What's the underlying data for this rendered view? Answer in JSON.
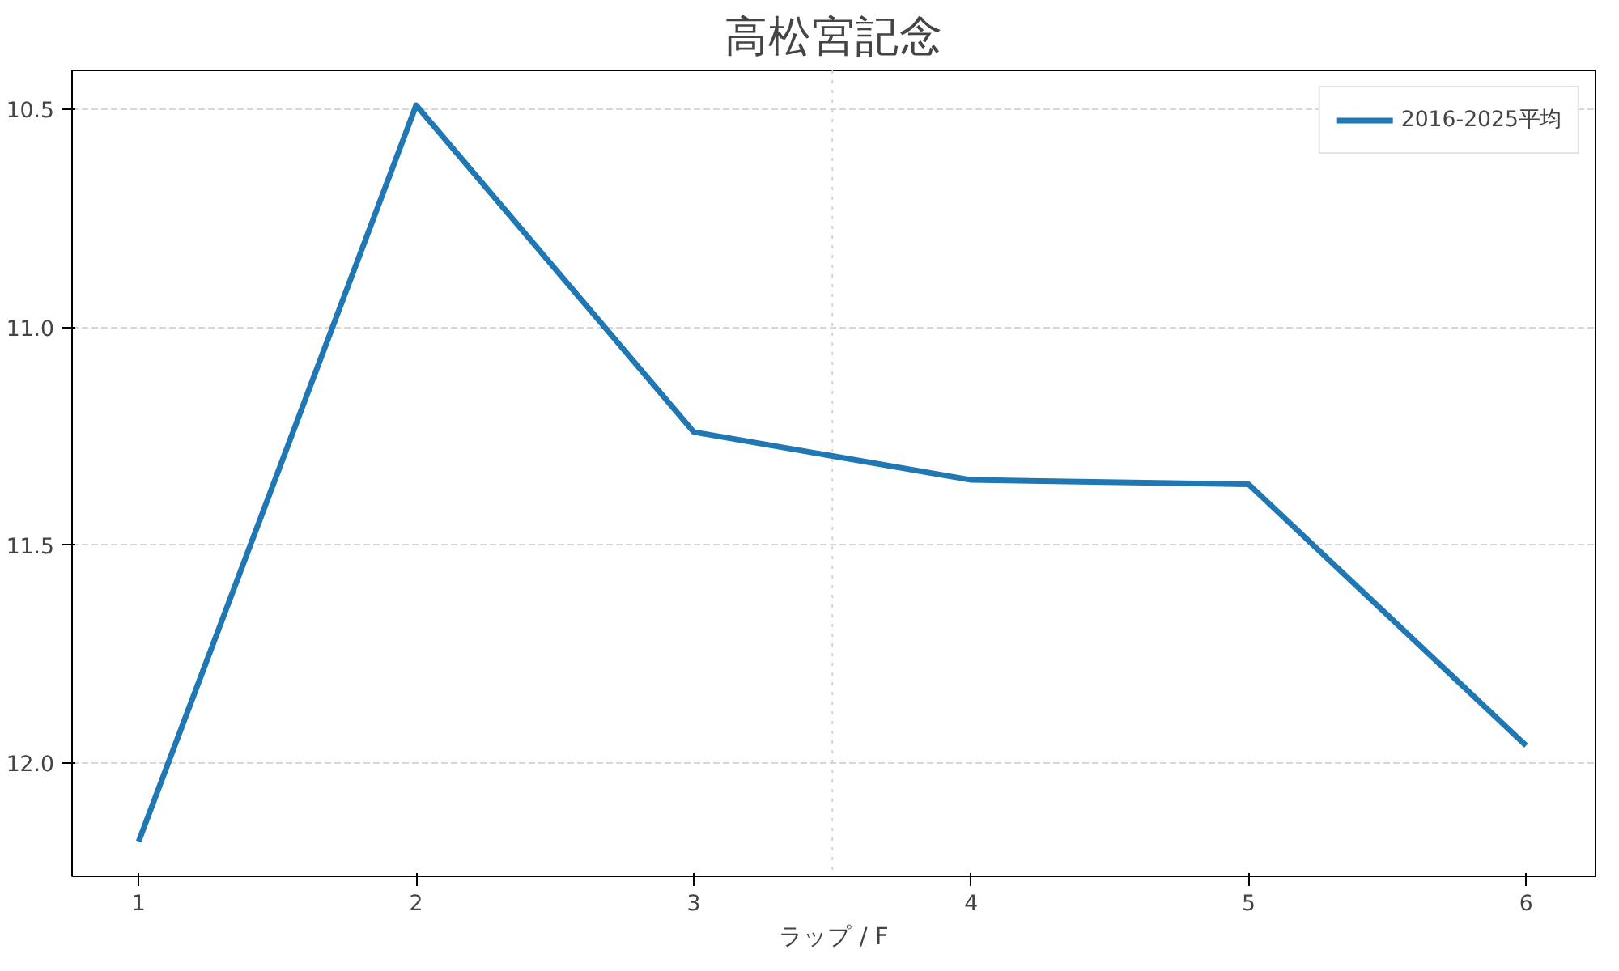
{
  "chart_data": {
    "type": "line",
    "title": "高松宮記念",
    "xlabel": "ラップ / F",
    "x": [
      1,
      2,
      3,
      4,
      5,
      6
    ],
    "series": [
      {
        "name": "2016-2025平均",
        "color": "#1f77b4",
        "values": [
          12.18,
          10.49,
          11.24,
          11.35,
          11.36,
          11.96
        ]
      }
    ],
    "xlim": [
      0.76,
      6.25
    ],
    "xticks": [
      1,
      2,
      3,
      4,
      5,
      6
    ],
    "ylim": [
      12.26,
      10.41
    ],
    "yticks": [
      {
        "value": 10.5,
        "label": "10.5"
      },
      {
        "value": 11.0,
        "label": "11.0"
      },
      {
        "value": 11.5,
        "label": "11.5"
      },
      {
        "value": 12.0,
        "label": "12.0"
      }
    ],
    "ref_lines": [
      {
        "axis": "x",
        "value": 3.5,
        "label": null,
        "color": "#cccccc",
        "line_style": "dotted"
      }
    ],
    "grid": "y",
    "legend": "top right",
    "line_style": "solid",
    "marker": "none"
  }
}
